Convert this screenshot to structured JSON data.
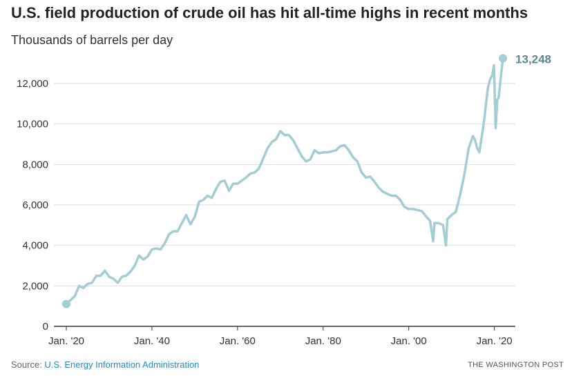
{
  "header": {
    "title": "U.S. field production of crude oil has hit all-time highs in recent months",
    "subtitle": "Thousands of barrels per day"
  },
  "footer": {
    "source_prefix": "Source: ",
    "source_link": "U.S. Energy Information Administration",
    "credit": "THE WASHINGTON POST"
  },
  "colors": {
    "line": "#a3cdd3",
    "end_label": "#5a8791",
    "grid": "#dddddd",
    "axis": "#333333",
    "link": "#2a8ac4"
  },
  "chart_data": {
    "type": "line",
    "title": "U.S. field production of crude oil has hit all-time highs in recent months",
    "subtitle": "Thousands of barrels per day",
    "xlabel": "",
    "ylabel": "Thousands of barrels per day",
    "xlim": [
      1920.0,
      2022.0
    ],
    "ylim": [
      0,
      13400
    ],
    "grid": true,
    "x_ticks": [
      1920,
      1940,
      1960,
      1980,
      2000,
      2020
    ],
    "x_tick_labels": [
      "Jan. '20",
      "Jan. '40",
      "Jan. '60",
      "Jan. '80",
      "Jan. '00",
      "Jan. '20"
    ],
    "y_ticks": [
      0,
      2000,
      4000,
      6000,
      8000,
      10000,
      12000
    ],
    "y_tick_labels": [
      "0",
      "2,000",
      "4,000",
      "6,000",
      "8,000",
      "10,000",
      "12,000"
    ],
    "series": [
      {
        "name": "",
        "x": [
          1920.0,
          1921.0,
          1922.0,
          1923.0,
          1924.0,
          1925.0,
          1926.0,
          1927.0,
          1928.0,
          1929.0,
          1930.0,
          1931.0,
          1932.0,
          1933.0,
          1934.0,
          1935.0,
          1936.0,
          1937.0,
          1938.0,
          1939.0,
          1940.0,
          1941.0,
          1942.0,
          1943.0,
          1944.0,
          1945.0,
          1946.0,
          1947.0,
          1948.0,
          1949.0,
          1950.0,
          1951.0,
          1952.0,
          1953.0,
          1954.0,
          1955.0,
          1956.0,
          1957.0,
          1958.0,
          1959.0,
          1960.0,
          1961.0,
          1962.0,
          1963.0,
          1964.0,
          1965.0,
          1966.0,
          1967.0,
          1968.0,
          1969.0,
          1970.0,
          1971.0,
          1972.0,
          1973.0,
          1974.0,
          1975.0,
          1976.0,
          1977.0,
          1978.0,
          1979.0,
          1980.0,
          1981.0,
          1982.0,
          1983.0,
          1984.0,
          1985.0,
          1986.0,
          1987.0,
          1988.0,
          1989.0,
          1990.0,
          1991.0,
          1992.0,
          1993.0,
          1994.0,
          1995.0,
          1996.0,
          1997.0,
          1998.0,
          1999.0,
          2000.0,
          2001.0,
          2002.0,
          2003.0,
          2004.0,
          2005.0,
          2005.7,
          2006.0,
          2007.0,
          2008.0,
          2008.7,
          2009.0,
          2010.0,
          2011.0,
          2012.0,
          2013.0,
          2014.0,
          2015.0,
          2015.5,
          2016.0,
          2016.5,
          2017.0,
          2017.5,
          2017.8,
          2018.0,
          2018.5,
          2019.0,
          2019.5,
          2019.9,
          2020.3,
          2020.7,
          2021.0,
          2021.5,
          2022.0
        ],
        "values": [
          1100,
          1300,
          1500,
          2000,
          1900,
          2100,
          2150,
          2500,
          2500,
          2750,
          2450,
          2350,
          2150,
          2450,
          2500,
          2700,
          3000,
          3500,
          3300,
          3450,
          3800,
          3850,
          3800,
          4100,
          4550,
          4700,
          4700,
          5100,
          5500,
          5050,
          5400,
          6150,
          6250,
          6450,
          6350,
          6800,
          7150,
          7200,
          6700,
          7050,
          7050,
          7200,
          7350,
          7550,
          7600,
          7800,
          8300,
          8800,
          9100,
          9250,
          9650,
          9450,
          9450,
          9200,
          8800,
          8400,
          8150,
          8250,
          8700,
          8550,
          8600,
          8600,
          8650,
          8700,
          8900,
          8950,
          8700,
          8350,
          8150,
          7600,
          7350,
          7400,
          7150,
          6850,
          6650,
          6550,
          6450,
          6450,
          6250,
          5900,
          5800,
          5800,
          5750,
          5700,
          5450,
          5200,
          4200,
          5100,
          5100,
          5000,
          4000,
          5300,
          5500,
          5650,
          6500,
          7500,
          8800,
          9400,
          9200,
          8800,
          8600,
          9300,
          10000,
          10500,
          10900,
          11800,
          12200,
          12400,
          12900,
          9800,
          11200,
          11300,
          12300,
          13248
        ]
      }
    ],
    "annotations": [
      {
        "x": 2022.0,
        "y": 13248,
        "text": "13,248"
      }
    ]
  }
}
